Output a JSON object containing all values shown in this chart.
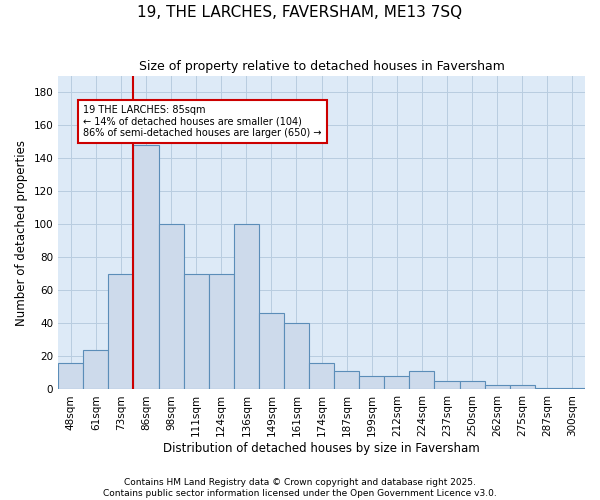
{
  "title1": "19, THE LARCHES, FAVERSHAM, ME13 7SQ",
  "title2": "Size of property relative to detached houses in Faversham",
  "xlabel": "Distribution of detached houses by size in Faversham",
  "ylabel": "Number of detached properties",
  "footnote1": "Contains HM Land Registry data © Crown copyright and database right 2025.",
  "footnote2": "Contains public sector information licensed under the Open Government Licence v3.0.",
  "categories": [
    "48sqm",
    "61sqm",
    "73sqm",
    "86sqm",
    "98sqm",
    "111sqm",
    "124sqm",
    "136sqm",
    "149sqm",
    "161sqm",
    "174sqm",
    "187sqm",
    "199sqm",
    "212sqm",
    "224sqm",
    "237sqm",
    "250sqm",
    "262sqm",
    "275sqm",
    "287sqm",
    "300sqm"
  ],
  "values": [
    16,
    24,
    70,
    148,
    100,
    70,
    70,
    100,
    46,
    40,
    16,
    11,
    8,
    8,
    11,
    5,
    5,
    3,
    3,
    1,
    1
  ],
  "bar_color": "#cddaeb",
  "bar_edge_color": "#5b8db8",
  "annotation_box_color": "#ffffff",
  "annotation_box_edge": "#cc0000",
  "annotation_text": "19 THE LARCHES: 85sqm\n← 14% of detached houses are smaller (104)\n86% of semi-detached houses are larger (650) →",
  "vline_x": 2.5,
  "vline_color": "#cc0000",
  "ylim": [
    0,
    190
  ],
  "yticks": [
    0,
    20,
    40,
    60,
    80,
    100,
    120,
    140,
    160,
    180
  ],
  "plot_bg_color": "#ddeaf7",
  "bg_color": "#ffffff",
  "grid_color": "#b8cde0",
  "title_fontsize": 11,
  "subtitle_fontsize": 9,
  "axis_label_fontsize": 8.5,
  "tick_fontsize": 7.5,
  "footnote_fontsize": 6.5,
  "annot_fontsize": 7
}
